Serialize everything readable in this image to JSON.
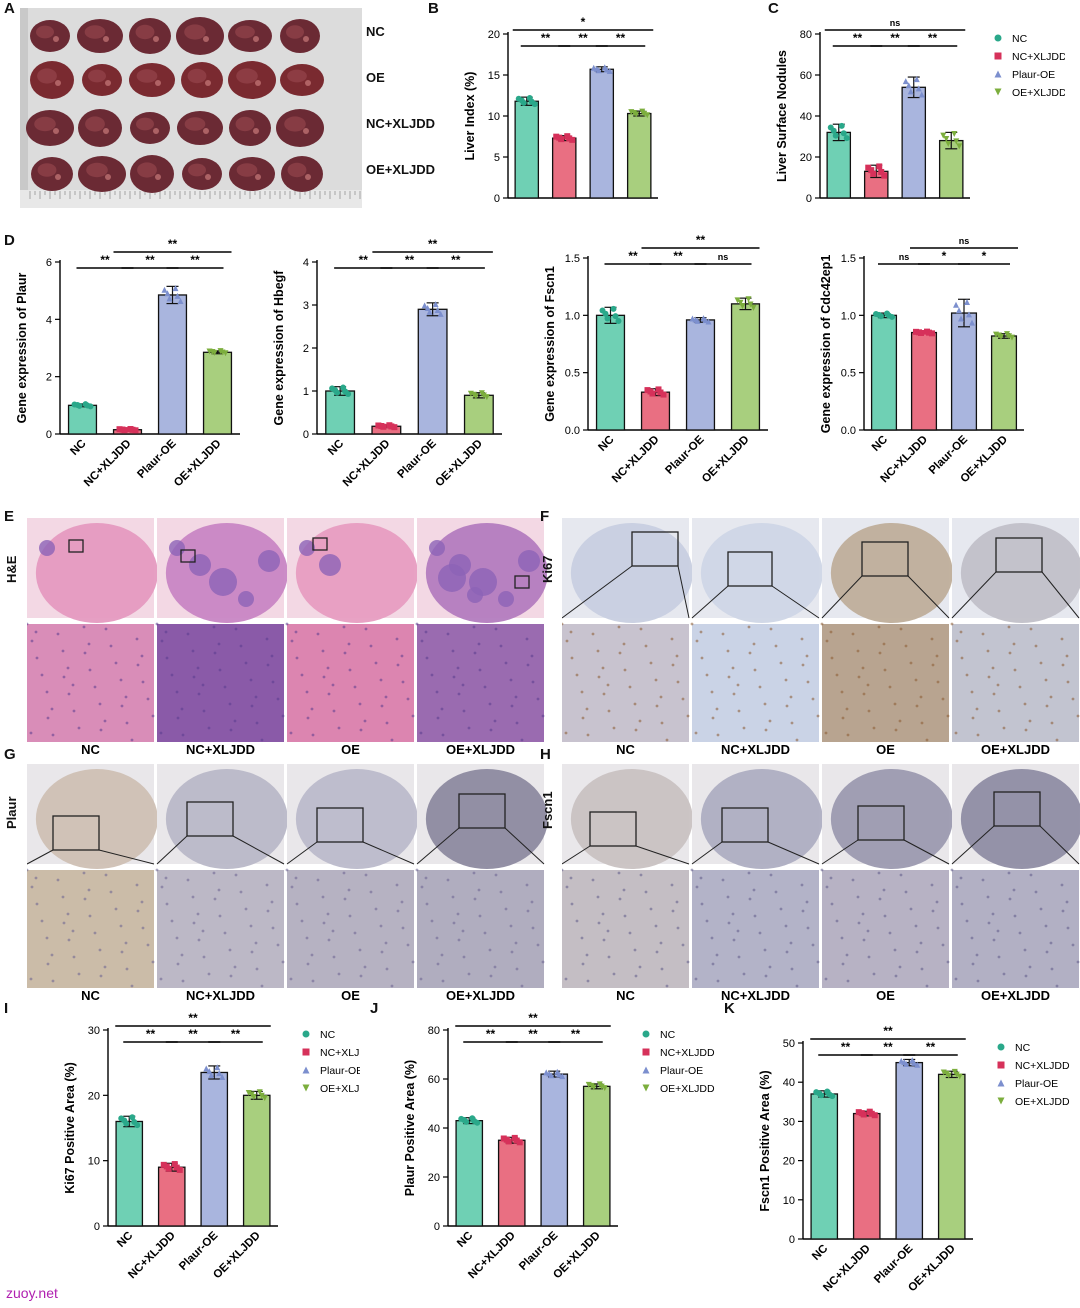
{
  "colors": {
    "NC": "#6fd0b4",
    "NC+XLJDD": "#e96f82",
    "Plaur-OE": "#a9b5de",
    "OE+XLJDD": "#a8cf7e",
    "NC_dot": "#2aa88a",
    "NC+XLJDD_dot": "#d6315a",
    "Plaur-OE_dot": "#7c8fce",
    "OE+XLJDD_dot": "#7cae3d"
  },
  "panelA": {
    "letter": "A",
    "row_labels": [
      "NC",
      "OE",
      "NC+XLJDD",
      "OE+XLJDD"
    ]
  },
  "panelE": {
    "letter": "E",
    "stain": "H&E",
    "groups": [
      "NC",
      "NC+XLJDD",
      "OE",
      "OE+XLJDD"
    ]
  },
  "panelF": {
    "letter": "F",
    "stain": "Ki67",
    "groups": [
      "NC",
      "NC+XLJDD",
      "OE",
      "OE+XLJDD"
    ]
  },
  "panelG": {
    "letter": "G",
    "stain": "Plaur",
    "groups": [
      "NC",
      "NC+XLJDD",
      "OE",
      "OE+XLJDD"
    ]
  },
  "panelH": {
    "letter": "H",
    "stain": "Fscn1",
    "groups": [
      "NC",
      "NC+XLJDD",
      "OE",
      "OE+XLJDD"
    ]
  },
  "watermark": "zuoy.net",
  "chart_data": [
    {
      "id": "B",
      "letter": "B",
      "type": "bar",
      "categories": [
        "NC",
        "NC+XLJDD",
        "Plaur-OE",
        "OE+XLJDD"
      ],
      "values": [
        11.8,
        7.3,
        15.7,
        10.3
      ],
      "errors": [
        0.5,
        0.3,
        0.3,
        0.3
      ],
      "ylabel": "Liver Index (%)",
      "ylim": [
        0,
        20
      ],
      "yticks": [
        0,
        5,
        10,
        15,
        20
      ],
      "show_xlabels": false,
      "legend": [
        "NC",
        "NC+XLJDD",
        "Plaur-OE",
        "OE+XLJDD"
      ],
      "legend_position": "right",
      "significance": [
        {
          "from": 0,
          "to": 3,
          "label": "*"
        },
        {
          "from": 0,
          "to": 1,
          "label": "**"
        },
        {
          "from": 1,
          "to": 2,
          "label": "**"
        },
        {
          "from": 2,
          "to": 3,
          "label": "**"
        }
      ]
    },
    {
      "id": "C",
      "letter": "C",
      "type": "bar",
      "categories": [
        "NC",
        "NC+XLJDD",
        "Plaur-OE",
        "OE+XLJDD"
      ],
      "values": [
        32,
        13,
        54,
        28
      ],
      "errors": [
        4,
        3,
        5,
        4
      ],
      "ylabel": "Liver Surface Nodules",
      "ylim": [
        0,
        80
      ],
      "yticks": [
        0,
        20,
        40,
        60,
        80
      ],
      "show_xlabels": false,
      "legend": [
        "NC",
        "NC+XLJDD",
        "Plaur-OE",
        "OE+XLJDD"
      ],
      "legend_position": "right",
      "significance": [
        {
          "from": 0,
          "to": 3,
          "label": "ns"
        },
        {
          "from": 0,
          "to": 1,
          "label": "**"
        },
        {
          "from": 1,
          "to": 2,
          "label": "**"
        },
        {
          "from": 2,
          "to": 3,
          "label": "**"
        }
      ]
    },
    {
      "id": "D1",
      "letter": "D",
      "type": "bar",
      "categories": [
        "NC",
        "NC+XLJDD",
        "Plaur-OE",
        "OE+XLJDD"
      ],
      "values": [
        1.0,
        0.15,
        4.85,
        2.85
      ],
      "errors": [
        0.05,
        0.03,
        0.3,
        0.05
      ],
      "ylabel": "Gene expression of Plaur",
      "ylim": [
        0,
        6
      ],
      "yticks": [
        0,
        2,
        4,
        6
      ],
      "show_xlabels": true,
      "significance": [
        {
          "from": 1,
          "to": 3,
          "label": "**"
        },
        {
          "from": 0,
          "to": 1,
          "label": "**"
        },
        {
          "from": 1,
          "to": 2,
          "label": "**"
        },
        {
          "from": 2,
          "to": 3,
          "label": "**"
        }
      ]
    },
    {
      "id": "D2",
      "type": "bar",
      "categories": [
        "NC",
        "NC+XLJDD",
        "Plaur-OE",
        "OE+XLJDD"
      ],
      "values": [
        1.0,
        0.18,
        2.9,
        0.9
      ],
      "errors": [
        0.1,
        0.03,
        0.15,
        0.06
      ],
      "ylabel": "Gene expression of Hbegf",
      "ylim": [
        0,
        4
      ],
      "yticks": [
        0,
        1,
        2,
        3,
        4
      ],
      "show_xlabels": true,
      "significance": [
        {
          "from": 1,
          "to": 3,
          "label": "**"
        },
        {
          "from": 0,
          "to": 1,
          "label": "**"
        },
        {
          "from": 1,
          "to": 2,
          "label": "**"
        },
        {
          "from": 2,
          "to": 3,
          "label": "**"
        }
      ]
    },
    {
      "id": "D3",
      "type": "bar",
      "categories": [
        "NC",
        "NC+XLJDD",
        "Plaur-OE",
        "OE+XLJDD"
      ],
      "values": [
        1.0,
        0.33,
        0.96,
        1.1
      ],
      "errors": [
        0.07,
        0.03,
        0.02,
        0.05
      ],
      "ylabel": "Gene expression of Fscn1",
      "ylim": [
        0,
        1.5
      ],
      "yticks": [
        0,
        0.5,
        1.0,
        1.5
      ],
      "show_xlabels": true,
      "significance": [
        {
          "from": 1,
          "to": 3,
          "label": "**"
        },
        {
          "from": 0,
          "to": 1,
          "label": "**"
        },
        {
          "from": 1,
          "to": 2,
          "label": "**"
        },
        {
          "from": 2,
          "to": 3,
          "label": "ns"
        }
      ]
    },
    {
      "id": "D4",
      "type": "bar",
      "categories": [
        "NC",
        "NC+XLJDD",
        "Plaur-OE",
        "OE+XLJDD"
      ],
      "values": [
        1.0,
        0.85,
        1.02,
        0.82
      ],
      "errors": [
        0.02,
        0.01,
        0.12,
        0.02
      ],
      "ylabel": "Gene expression of Cdc42ep1",
      "ylim": [
        0,
        1.5
      ],
      "yticks": [
        0,
        0.5,
        1.0,
        1.5
      ],
      "show_xlabels": true,
      "significance": [
        {
          "from": 1,
          "to": 3,
          "label": "ns"
        },
        {
          "from": 0,
          "to": 1,
          "label": "ns"
        },
        {
          "from": 1,
          "to": 2,
          "label": "*"
        },
        {
          "from": 2,
          "to": 3,
          "label": "*"
        }
      ]
    },
    {
      "id": "I",
      "letter": "I",
      "type": "bar",
      "categories": [
        "NC",
        "NC+XLJDD",
        "Plaur-OE",
        "OE+XLJDD"
      ],
      "values": [
        16,
        9,
        23.5,
        20
      ],
      "errors": [
        0.8,
        0.6,
        1.0,
        0.6
      ],
      "ylabel": "Ki67 Positive Area (%)",
      "ylim": [
        0,
        30
      ],
      "yticks": [
        0,
        10,
        20,
        30
      ],
      "show_xlabels": true,
      "legend": [
        "NC",
        "NC+XLJDD",
        "Plaur-OE",
        "OE+XLJDD"
      ],
      "legend_position": "right",
      "significance": [
        {
          "from": 0,
          "to": 3,
          "label": "**"
        },
        {
          "from": 0,
          "to": 1,
          "label": "**"
        },
        {
          "from": 1,
          "to": 2,
          "label": "**"
        },
        {
          "from": 2,
          "to": 3,
          "label": "**"
        }
      ]
    },
    {
      "id": "J",
      "letter": "J",
      "type": "bar",
      "categories": [
        "NC",
        "NC+XLJDD",
        "Plaur-OE",
        "OE+XLJDD"
      ],
      "values": [
        43,
        35,
        62,
        57
      ],
      "errors": [
        1.2,
        1.2,
        1.2,
        1.0
      ],
      "ylabel": "Plaur Positive Area (%)",
      "ylim": [
        0,
        80
      ],
      "yticks": [
        0,
        20,
        40,
        60,
        80
      ],
      "show_xlabels": true,
      "legend": [
        "NC",
        "NC+XLJDD",
        "Plaur-OE",
        "OE+XLJDD"
      ],
      "legend_position": "right",
      "significance": [
        {
          "from": 0,
          "to": 3,
          "label": "**"
        },
        {
          "from": 0,
          "to": 1,
          "label": "**"
        },
        {
          "from": 1,
          "to": 2,
          "label": "**"
        },
        {
          "from": 2,
          "to": 3,
          "label": "**"
        }
      ]
    },
    {
      "id": "K",
      "letter": "K",
      "type": "bar",
      "categories": [
        "NC",
        "NC+XLJDD",
        "Plaur-OE",
        "OE+XLJDD"
      ],
      "values": [
        37,
        32,
        45,
        42
      ],
      "errors": [
        0.8,
        0.6,
        0.8,
        0.8
      ],
      "ylabel": "Fscn1 Positive Area (%)",
      "ylim": [
        0,
        50
      ],
      "yticks": [
        0,
        10,
        20,
        30,
        40,
        50
      ],
      "show_xlabels": true,
      "legend": [
        "NC",
        "NC+XLJDD",
        "Plaur-OE",
        "OE+XLJDD"
      ],
      "legend_position": "right",
      "significance": [
        {
          "from": 0,
          "to": 3,
          "label": "**"
        },
        {
          "from": 0,
          "to": 1,
          "label": "**"
        },
        {
          "from": 1,
          "to": 2,
          "label": "**"
        },
        {
          "from": 2,
          "to": 3,
          "label": "**"
        }
      ]
    }
  ]
}
